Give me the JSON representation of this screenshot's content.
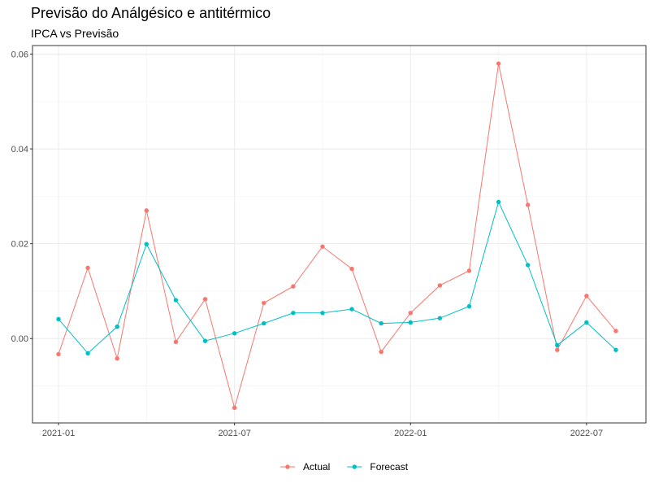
{
  "chart_data": {
    "type": "line",
    "title": "Previsão do Análgésico e antitérmico",
    "subtitle": "IPCA vs Previsão",
    "xlabel": "",
    "ylabel": "",
    "x": [
      "2021-01",
      "2021-02",
      "2021-03",
      "2021-04",
      "2021-05",
      "2021-06",
      "2021-07",
      "2021-08",
      "2021-09",
      "2021-10",
      "2021-11",
      "2021-12",
      "2022-01",
      "2022-02",
      "2022-03",
      "2022-04",
      "2022-05",
      "2022-06",
      "2022-07",
      "2022-08"
    ],
    "x_ticks": [
      "2021-01",
      "2021-07",
      "2022-01",
      "2022-07"
    ],
    "y_ticks": [
      0.0,
      0.02,
      0.04,
      0.06
    ],
    "y_tick_labels": [
      "0.00",
      "0.02",
      "0.04",
      "0.06"
    ],
    "ylim": [
      -0.0178,
      0.0618
    ],
    "grid": true,
    "legend_position": "bottom",
    "series": [
      {
        "name": "Actual",
        "color": "#F8766D",
        "values": [
          -0.0033,
          0.0149,
          -0.0042,
          0.027,
          -0.0007,
          0.0083,
          -0.0146,
          0.0075,
          0.011,
          0.0194,
          0.0147,
          -0.0028,
          0.0054,
          0.0112,
          0.0143,
          0.058,
          0.0282,
          -0.0024,
          0.009,
          0.0016
        ]
      },
      {
        "name": "Forecast",
        "color": "#00BFC4",
        "values": [
          0.0041,
          -0.0031,
          0.0025,
          0.0199,
          0.0081,
          -0.0005,
          0.0011,
          0.0032,
          0.0054,
          0.0054,
          0.0062,
          0.0032,
          0.0034,
          0.0043,
          0.0068,
          0.0288,
          0.0155,
          -0.0014,
          0.0034,
          -0.0024
        ]
      }
    ]
  }
}
